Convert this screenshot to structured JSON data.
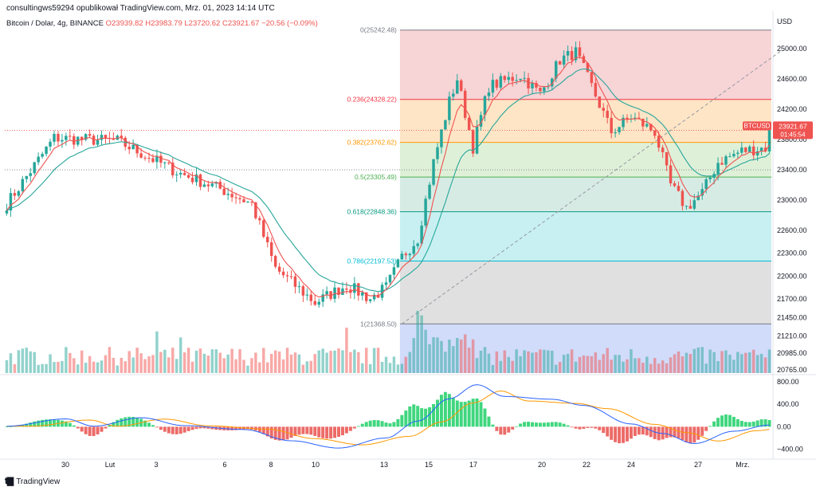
{
  "header": {
    "published_by": "consultingws59294 opublikował TradingView.com, Mrz. 01, 2023 14:14 UTC",
    "symbol_desc": "Bitcoin / Dolar, 4g, BINANCE",
    "open": "O23939.82",
    "high": "H23983.79",
    "low": "L23720.62",
    "close": "C23921.67",
    "change": "−20.56 (−0.09%)"
  },
  "brand": {
    "logo_icon": "tradingview-logo-icon",
    "label": "TradingView"
  },
  "colors": {
    "up": "#26a69a",
    "down": "#ef5350",
    "ma_fast": "#ef5350",
    "ma_slow": "#26a69a",
    "macd_line": "#2962ff",
    "signal_line": "#ff9800",
    "hist_up": "#00c853",
    "hist_down": "#e53935"
  },
  "chart_data": [
    {
      "type": "candlestick",
      "symbol": "BTCUSD",
      "title": "",
      "price_axis_label": "USD",
      "ylim": [
        20700,
        25450
      ],
      "y_ticks": [
        25000,
        24600,
        24200,
        23800,
        23400,
        23000,
        22600,
        22300,
        22000,
        21700,
        21450,
        21210,
        20985,
        20765
      ],
      "price_tag": {
        "label": "BTCUSD",
        "price": "23921.67",
        "countdown": "01:45:54"
      },
      "x_ticks": [
        "30",
        "Lut",
        "3",
        "6",
        "8",
        "10",
        "13",
        "15",
        "17",
        "20",
        "22",
        "24",
        "27",
        "Mrz."
      ],
      "key_points": [
        {
          "t": 0,
          "price": 22950
        },
        {
          "t": 12,
          "price": 23820
        },
        {
          "t": 28,
          "price": 23780
        },
        {
          "t": 44,
          "price": 23350
        },
        {
          "t": 54,
          "price": 23150
        },
        {
          "t": 62,
          "price": 22950
        },
        {
          "t": 68,
          "price": 22100
        },
        {
          "t": 78,
          "price": 21650
        },
        {
          "t": 86,
          "price": 21880
        },
        {
          "t": 92,
          "price": 21700
        },
        {
          "t": 96,
          "price": 21850
        },
        {
          "t": 100,
          "price": 22250
        },
        {
          "t": 104,
          "price": 22500
        },
        {
          "t": 108,
          "price": 23500
        },
        {
          "t": 112,
          "price": 24300
        },
        {
          "t": 114,
          "price": 24600
        },
        {
          "t": 118,
          "price": 23700
        },
        {
          "t": 122,
          "price": 24500
        },
        {
          "t": 130,
          "price": 24650
        },
        {
          "t": 135,
          "price": 24400
        },
        {
          "t": 140,
          "price": 24850
        },
        {
          "t": 144,
          "price": 24950
        },
        {
          "t": 148,
          "price": 24500
        },
        {
          "t": 153,
          "price": 23900
        },
        {
          "t": 158,
          "price": 24100
        },
        {
          "t": 164,
          "price": 23900
        },
        {
          "t": 168,
          "price": 23200
        },
        {
          "t": 172,
          "price": 22900
        },
        {
          "t": 176,
          "price": 23100
        },
        {
          "t": 180,
          "price": 23500
        },
        {
          "t": 186,
          "price": 23650
        },
        {
          "t": 193,
          "price": 23700
        }
      ],
      "fibonacci": [
        {
          "ratio": "0",
          "price": 25242.48,
          "label": "0(25242.48)",
          "color": "#787b86",
          "fill": "#f7d4d6"
        },
        {
          "ratio": "0.236",
          "price": 24328.22,
          "label": "0.236(24328.22)",
          "color": "#f23645",
          "fill": "#fde5c6"
        },
        {
          "ratio": "0.382",
          "price": 23762.62,
          "label": "0.382(23762.62)",
          "color": "#ff9800",
          "fill": "#dff0d8"
        },
        {
          "ratio": "0.5",
          "price": 23305.49,
          "label": "0.5(23305.49)",
          "color": "#4caf50",
          "fill": "#d7ebe5"
        },
        {
          "ratio": "0.618",
          "price": 22848.36,
          "label": "0.618(22848.36)",
          "color": "#089981",
          "fill": "#c8f0f2"
        },
        {
          "ratio": "0.786",
          "price": 22197.53,
          "label": "0.786(22197.53)",
          "color": "#00bcd4",
          "fill": "#e0e0e0"
        },
        {
          "ratio": "1",
          "price": 21368.5,
          "label": "1(21368.50)",
          "color": "#787b86",
          "fill": "#d1dbfa"
        }
      ],
      "fib_span": {
        "start_t": 100,
        "end_t": 193
      },
      "trend_line": {
        "start_t": 100,
        "start_price": 21368.5,
        "end_t": 196,
        "end_price": 24970
      },
      "reference_levels": [
        23921.67,
        23400
      ],
      "volume_range": [
        0,
        1.0
      ]
    },
    {
      "type": "line",
      "name": "MACD",
      "y_ticks": [
        800,
        400,
        0,
        -400
      ],
      "y_tick_labels": [
        "800.00",
        "400.00",
        "0.00",
        "−400.00"
      ],
      "ylim": [
        -520,
        900
      ],
      "macd_points": [
        {
          "t": 0,
          "v": 10
        },
        {
          "t": 15,
          "v": 140
        },
        {
          "t": 22,
          "v": 10
        },
        {
          "t": 34,
          "v": 160
        },
        {
          "t": 45,
          "v": 20
        },
        {
          "t": 60,
          "v": -50
        },
        {
          "t": 72,
          "v": -250
        },
        {
          "t": 84,
          "v": -380
        },
        {
          "t": 96,
          "v": -200
        },
        {
          "t": 104,
          "v": 100
        },
        {
          "t": 112,
          "v": 500
        },
        {
          "t": 119,
          "v": 750
        },
        {
          "t": 126,
          "v": 540
        },
        {
          "t": 138,
          "v": 490
        },
        {
          "t": 146,
          "v": 380
        },
        {
          "t": 158,
          "v": 50
        },
        {
          "t": 166,
          "v": -120
        },
        {
          "t": 174,
          "v": -300
        },
        {
          "t": 184,
          "v": -80
        },
        {
          "t": 193,
          "v": 30
        }
      ],
      "signal_lag": 6
    }
  ]
}
